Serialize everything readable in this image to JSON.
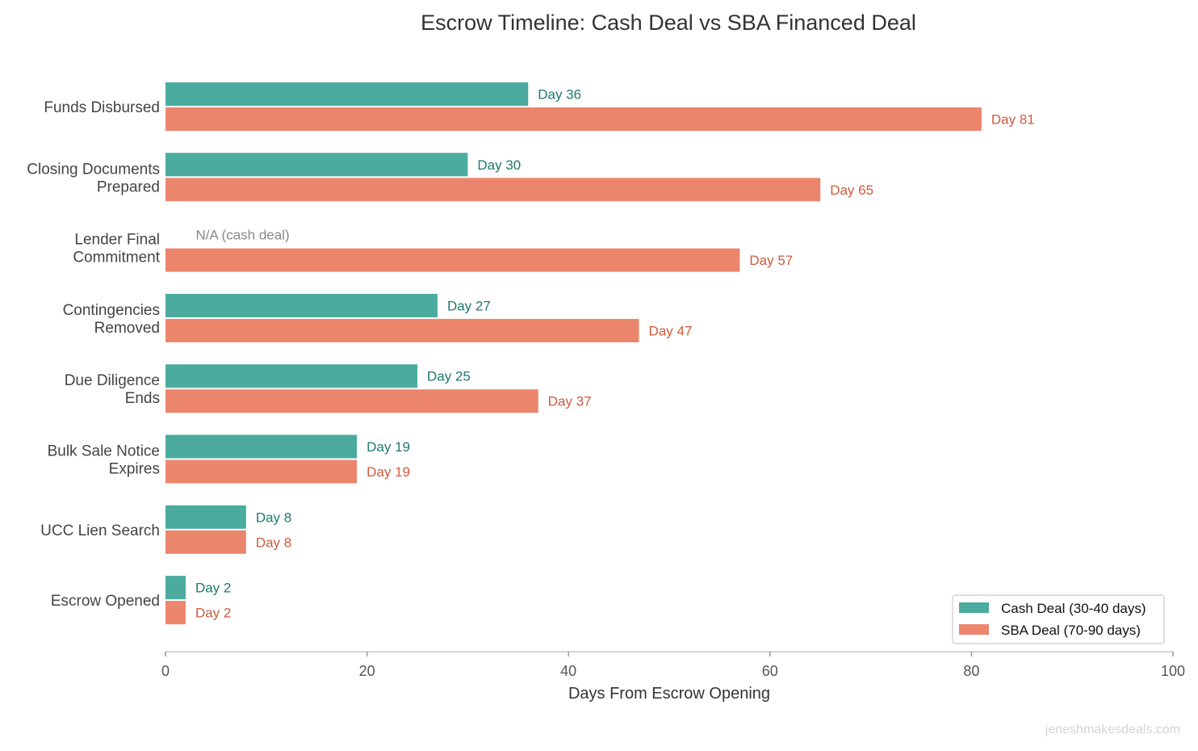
{
  "chart_data": {
    "type": "bar",
    "orientation": "horizontal",
    "title": "Escrow Timeline: Cash Deal vs SBA Financed Deal",
    "xlabel": "Days From Escrow Opening",
    "ylabel": "",
    "xlim": [
      0,
      100
    ],
    "xticks": [
      "0",
      "20",
      "40",
      "60",
      "80",
      "100"
    ],
    "grid": false,
    "legend_placement": "bottom-right",
    "categories": [
      [
        "Funds Disbursed"
      ],
      [
        "Closing Documents",
        "Prepared"
      ],
      [
        "Lender Final",
        "Commitment"
      ],
      [
        "Contingencies",
        "Removed"
      ],
      [
        "Due Diligence",
        "Ends"
      ],
      [
        "Bulk Sale Notice",
        "Expires"
      ],
      [
        "UCC Lien Search"
      ],
      [
        "Escrow Opened"
      ]
    ],
    "series": [
      {
        "name": "Cash Deal (30-40 days)",
        "color": "#4aab9e",
        "label_color": "#1f7a6b",
        "values": [
          36,
          30,
          null,
          27,
          25,
          19,
          8,
          2
        ],
        "labels": [
          "Day 36",
          "Day 30",
          "N/A (cash deal)",
          "Day 27",
          "Day 25",
          "Day 19",
          "Day 8",
          "Day 2"
        ]
      },
      {
        "name": "SBA Deal (70-90 days)",
        "color": "#eb866d",
        "label_color": "#cf5a3e",
        "values": [
          81,
          65,
          57,
          47,
          37,
          19,
          8,
          2
        ],
        "labels": [
          "Day 81",
          "Day 65",
          "Day 57",
          "Day 47",
          "Day 37",
          "Day 19",
          "Day 8",
          "Day 2"
        ]
      }
    ],
    "na_color": "#888888",
    "watermark": "jeneshmakesdeals.com"
  }
}
